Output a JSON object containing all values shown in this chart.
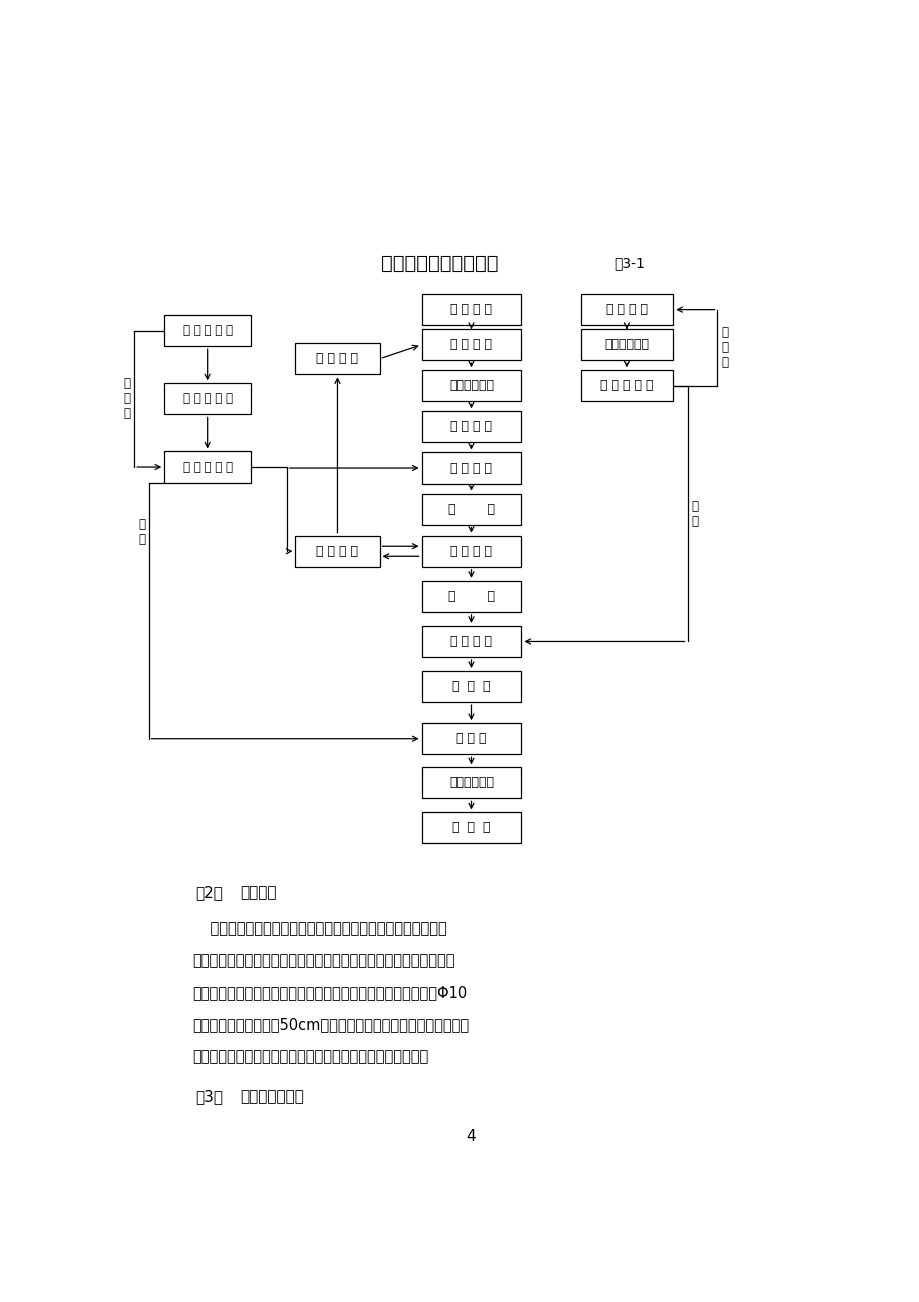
{
  "title": "冲击钻施工工艺流程图",
  "fig_label": "图3-1",
  "main_boxes": [
    "桩 位 测 放",
    "埋 设 护 筒",
    "桩位偏差检验",
    "钻 机 就 位",
    "冲 击 钻 进",
    "终        孔",
    "清 孔 换 浆",
    "检        孔",
    "下 钢 筋 笼",
    "下  导  管",
    "砼 灌 注",
    "起拔导管护筒",
    "砼  养  护"
  ],
  "left_boxes": [
    "混 凝 土 制 备",
    "混 凝 土 运 输",
    "测 砼 坍 落 度"
  ],
  "mud_boxes": [
    "泥 浆 制 备",
    "泥 浆 排 放"
  ],
  "right_boxes": [
    "钢 筋 检 验",
    "钢筋下料焊接",
    "钢 筋 笼 加 工"
  ],
  "para2_title_prefix": "（2）",
  "para2_title": "测量放样",
  "para2_body": "    技术人员首先对设计图纸提供的桩位坐标进行复核。复核完成\n后根据总监办批复后的控制点坐标对桩位进行放样，施工人员根据放\n样出的桩位中心埋设十字护桩，以方便随时检查桩位。护桩采用Φ10\n木桩，埋设深度不小于50cm，混凝土包裹，定点采用铁钉。护桩埋\n设完成后，报测量监理工程复核，复核无误后方可埋设护筒。",
  "para3_title_prefix": "（3）",
  "para3_title": "护筒制作及安装",
  "page_num": "4"
}
